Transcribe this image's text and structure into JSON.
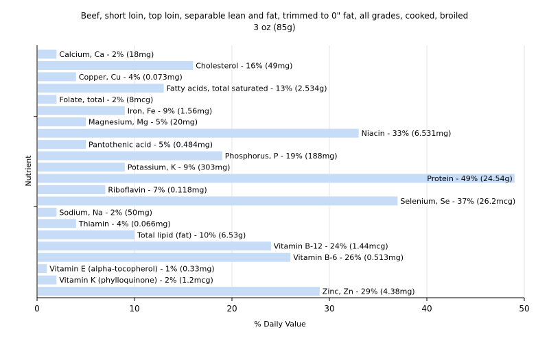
{
  "chart_data": {
    "type": "bar",
    "orientation": "horizontal",
    "title": "Beef, short loin, top loin, separable lean and fat, trimmed to 0\" fat, all grades, cooked, broiled",
    "subtitle": "3 oz (85g)",
    "xlabel": "% Daily Value",
    "ylabel": "Nutrient",
    "xlim": [
      0,
      50
    ],
    "xticks": [
      "0",
      "10",
      "20",
      "30",
      "40",
      "50"
    ],
    "grid": true,
    "colors": {
      "bar": "#c6dcf7",
      "grid": "#e6e6e6",
      "axis": "#000000"
    },
    "categories": [
      "Calcium, Ca",
      "Cholesterol",
      "Copper, Cu",
      "Fatty acids, total saturated",
      "Folate, total",
      "Iron, Fe",
      "Magnesium, Mg",
      "Niacin",
      "Pantothenic acid",
      "Phosphorus, P",
      "Potassium, K",
      "Protein",
      "Riboflavin",
      "Selenium, Se",
      "Sodium, Na",
      "Thiamin",
      "Total lipid (fat)",
      "Vitamin B-12",
      "Vitamin B-6",
      "Vitamin E (alpha-tocopherol)",
      "Vitamin K (phylloquinone)",
      "Zinc, Zn"
    ],
    "values": [
      2,
      16,
      4,
      13,
      2,
      9,
      5,
      33,
      5,
      19,
      9,
      49,
      7,
      37,
      2,
      4,
      10,
      24,
      26,
      1,
      2,
      29
    ],
    "labels": [
      "Calcium, Ca - 2% (18mg)",
      "Cholesterol - 16% (49mg)",
      "Copper, Cu - 4% (0.073mg)",
      "Fatty acids, total saturated - 13% (2.534g)",
      "Folate, total - 2% (8mcg)",
      "Iron, Fe - 9% (1.56mg)",
      "Magnesium, Mg - 5% (20mg)",
      "Niacin - 33% (6.531mg)",
      "Pantothenic acid - 5% (0.484mg)",
      "Phosphorus, P - 19% (188mg)",
      "Potassium, K - 9% (303mg)",
      "Protein - 49% (24.54g)",
      "Riboflavin - 7% (0.118mg)",
      "Selenium, Se - 37% (26.2mcg)",
      "Sodium, Na - 2% (50mg)",
      "Thiamin - 4% (0.066mg)",
      "Total lipid (fat) - 10% (6.53g)",
      "Vitamin B-12 - 24% (1.44mcg)",
      "Vitamin B-6 - 26% (0.513mg)",
      "Vitamin E (alpha-tocopherol) - 1% (0.33mg)",
      "Vitamin K (phylloquinone) - 2% (1.2mcg)",
      "Zinc, Zn - 29% (4.38mg)"
    ]
  }
}
